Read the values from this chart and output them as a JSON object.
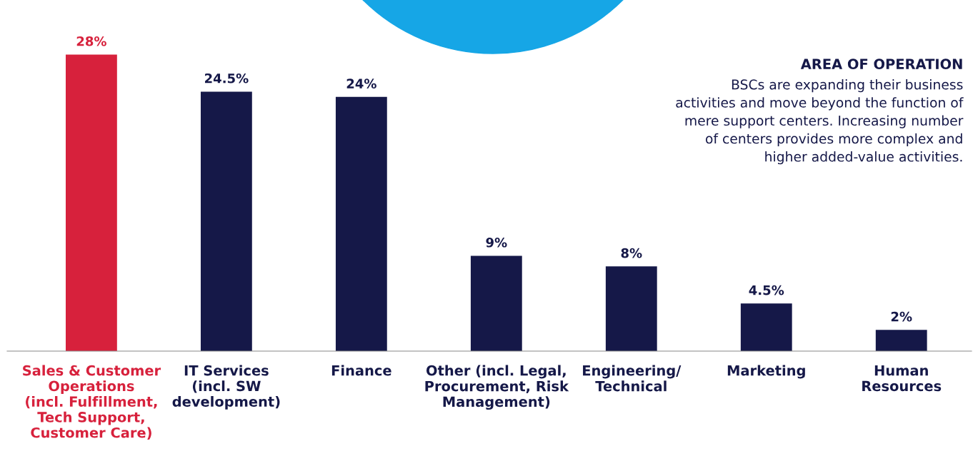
{
  "chart_data": {
    "type": "bar",
    "title": "AREA OF OPERATION",
    "subtitle": "BSCs are expanding their business\nactivities and move beyond the function of\nmere support centers. Increasing number\nof centers provides more complex and\nhigher added-value activities.",
    "categories": [
      "Sales & Customer\nOperations\n(incl. Fulfillment,\nTech Support,\nCustomer Care)",
      "IT Services\n(incl. SW\ndevelopment)",
      "Finance",
      "Other (incl. Legal,\nProcurement, Risk\nManagement)",
      "Engineering/\nTechnical",
      "Marketing",
      "Human\nResources"
    ],
    "values": [
      28,
      24.5,
      24,
      9,
      8,
      4.5,
      2
    ],
    "value_labels": [
      "28%",
      "24.5%",
      "24%",
      "9%",
      "8%",
      "4.5%",
      "2%"
    ],
    "colors": [
      "#d7213c",
      "#151848",
      "#151848",
      "#151848",
      "#151848",
      "#151848",
      "#151848"
    ]
  }
}
